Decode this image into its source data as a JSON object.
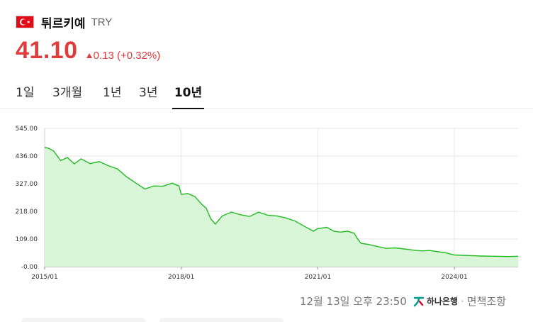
{
  "header": {
    "flag_icon": "turkey-flag-icon",
    "name": "튀르키예",
    "code": "TRY"
  },
  "price": {
    "value": "41.10",
    "change": "0.13 (+0.32%)",
    "direction": "up",
    "color": "#e03c3c"
  },
  "tabs": [
    {
      "label": "1일",
      "active": false
    },
    {
      "label": "3개월",
      "active": false
    },
    {
      "label": "1년",
      "active": false
    },
    {
      "label": "3년",
      "active": false
    },
    {
      "label": "10년",
      "active": true
    }
  ],
  "chart_data": {
    "type": "area",
    "ylim": [
      0,
      545
    ],
    "yticks": [
      "545.00",
      "436.00",
      "327.00",
      "218.00",
      "109.00",
      "-0.00"
    ],
    "xticks": [
      "2015/01",
      "2018/01",
      "2021/01",
      "2024/01"
    ],
    "grid": true,
    "line_color": "#22bb22",
    "fill_color": "#d8f5d8",
    "series": [
      {
        "x": [
          2015.0,
          2015.1,
          2015.2,
          2015.35,
          2015.5,
          2015.65,
          2015.8,
          2016.0,
          2016.2,
          2016.4,
          2016.6,
          2016.8,
          2017.0,
          2017.2,
          2017.4,
          2017.6,
          2017.8,
          2017.95,
          2018.0,
          2018.15,
          2018.3,
          2018.45,
          2018.55,
          2018.65,
          2018.75,
          2018.9,
          2019.1,
          2019.3,
          2019.5,
          2019.7,
          2019.9,
          2020.1,
          2020.3,
          2020.5,
          2020.7,
          2020.9,
          2021.0,
          2021.2,
          2021.35,
          2021.5,
          2021.65,
          2021.8,
          2021.87,
          2021.95,
          2022.1,
          2022.3,
          2022.5,
          2022.7,
          2022.9,
          2023.1,
          2023.3,
          2023.45,
          2023.6,
          2023.8,
          2024.0,
          2024.3,
          2024.6,
          2024.9,
          2025.2,
          2025.4
        ],
        "y": [
          470,
          466,
          455,
          418,
          430,
          405,
          425,
          406,
          414,
          398,
          385,
          354,
          330,
          306,
          318,
          317,
          329,
          318,
          285,
          288,
          276,
          246,
          230,
          188,
          168,
          200,
          215,
          205,
          198,
          215,
          203,
          200,
          192,
          180,
          160,
          140,
          150,
          155,
          140,
          136,
          140,
          132,
          110,
          92,
          88,
          80,
          72,
          74,
          70,
          65,
          62,
          64,
          60,
          55,
          46,
          44,
          42,
          41,
          40,
          41
        ]
      }
    ]
  },
  "footer": {
    "timestamp": "12월 13일 오후 23:50",
    "bank_icon": "hana-bank-logo-icon",
    "bank_name": "하나은행",
    "separator": "·",
    "disclaimer": "면책조항"
  }
}
